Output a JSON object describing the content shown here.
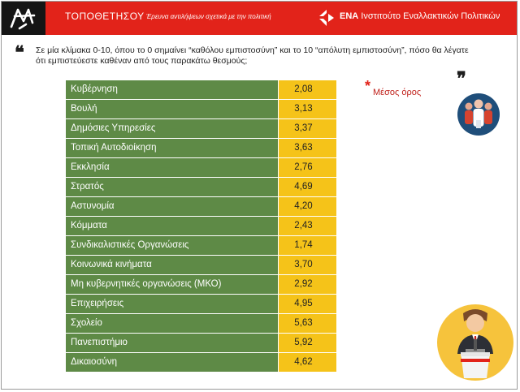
{
  "header": {
    "title": "ΤΟΠΟΘΕΤΗΣΟΥ",
    "subtitle": "Έρευνα αντιλήψεων σχετικά με την πολιτική",
    "org_name_bold": "ΕΝΑ",
    "org_name_rest": " Ινστιτούτο Εναλλακτικών Πολιτικών"
  },
  "question": "Σε μία κλίμακα 0-10, όπου το 0 σημαίνει “καθόλου εμπιστοσύνη” και το 10 “απόλυτη εμπιστοσύνη”, πόσο θα λέγατε ότι εμπιστεύεστε καθέναν από τους παρακάτω θεσμούς;",
  "quote_open": "❝",
  "quote_close": "❞",
  "legend": {
    "mark": "*",
    "label": "Μέσος όρος"
  },
  "rows": [
    {
      "name": "Κυβέρνηση",
      "value": "2,08"
    },
    {
      "name": "Βουλή",
      "value": "3,13"
    },
    {
      "name": "Δημόσιες Υπηρεσίες",
      "value": "3,37"
    },
    {
      "name": "Τοπική Αυτοδιοίκηση",
      "value": "3,63"
    },
    {
      "name": "Εκκλησία",
      "value": "2,76"
    },
    {
      "name": "Στρατός",
      "value": "4,69"
    },
    {
      "name": "Αστυνομία",
      "value": "4,20"
    },
    {
      "name": "Κόμματα",
      "value": "2,43"
    },
    {
      "name": "Συνδικαλιστικές Οργανώσεις",
      "value": "1,74"
    },
    {
      "name": "Κοινωνικά κινήματα",
      "value": "3,70"
    },
    {
      "name": "Μη κυβερνητικές οργανώσεις (ΜΚΟ)",
      "value": "2,92"
    },
    {
      "name": "Επιχειρήσεις",
      "value": "4,95"
    },
    {
      "name": "Σχολείο",
      "value": "5,63"
    },
    {
      "name": "Πανεπιστήμιο",
      "value": "5,92"
    },
    {
      "name": "Δικαιοσύνη",
      "value": "4,62"
    }
  ],
  "colors": {
    "header_red": "#e2231a",
    "row_green": "#5e8a46",
    "value_yellow": "#f5c319",
    "people_circle": "#1f4e7a",
    "speaker_circle": "#f6c33c"
  },
  "icons": [
    "topothetisou-logo-icon",
    "ena-logo-icon",
    "people-group-icon",
    "speaker-podium-icon"
  ]
}
